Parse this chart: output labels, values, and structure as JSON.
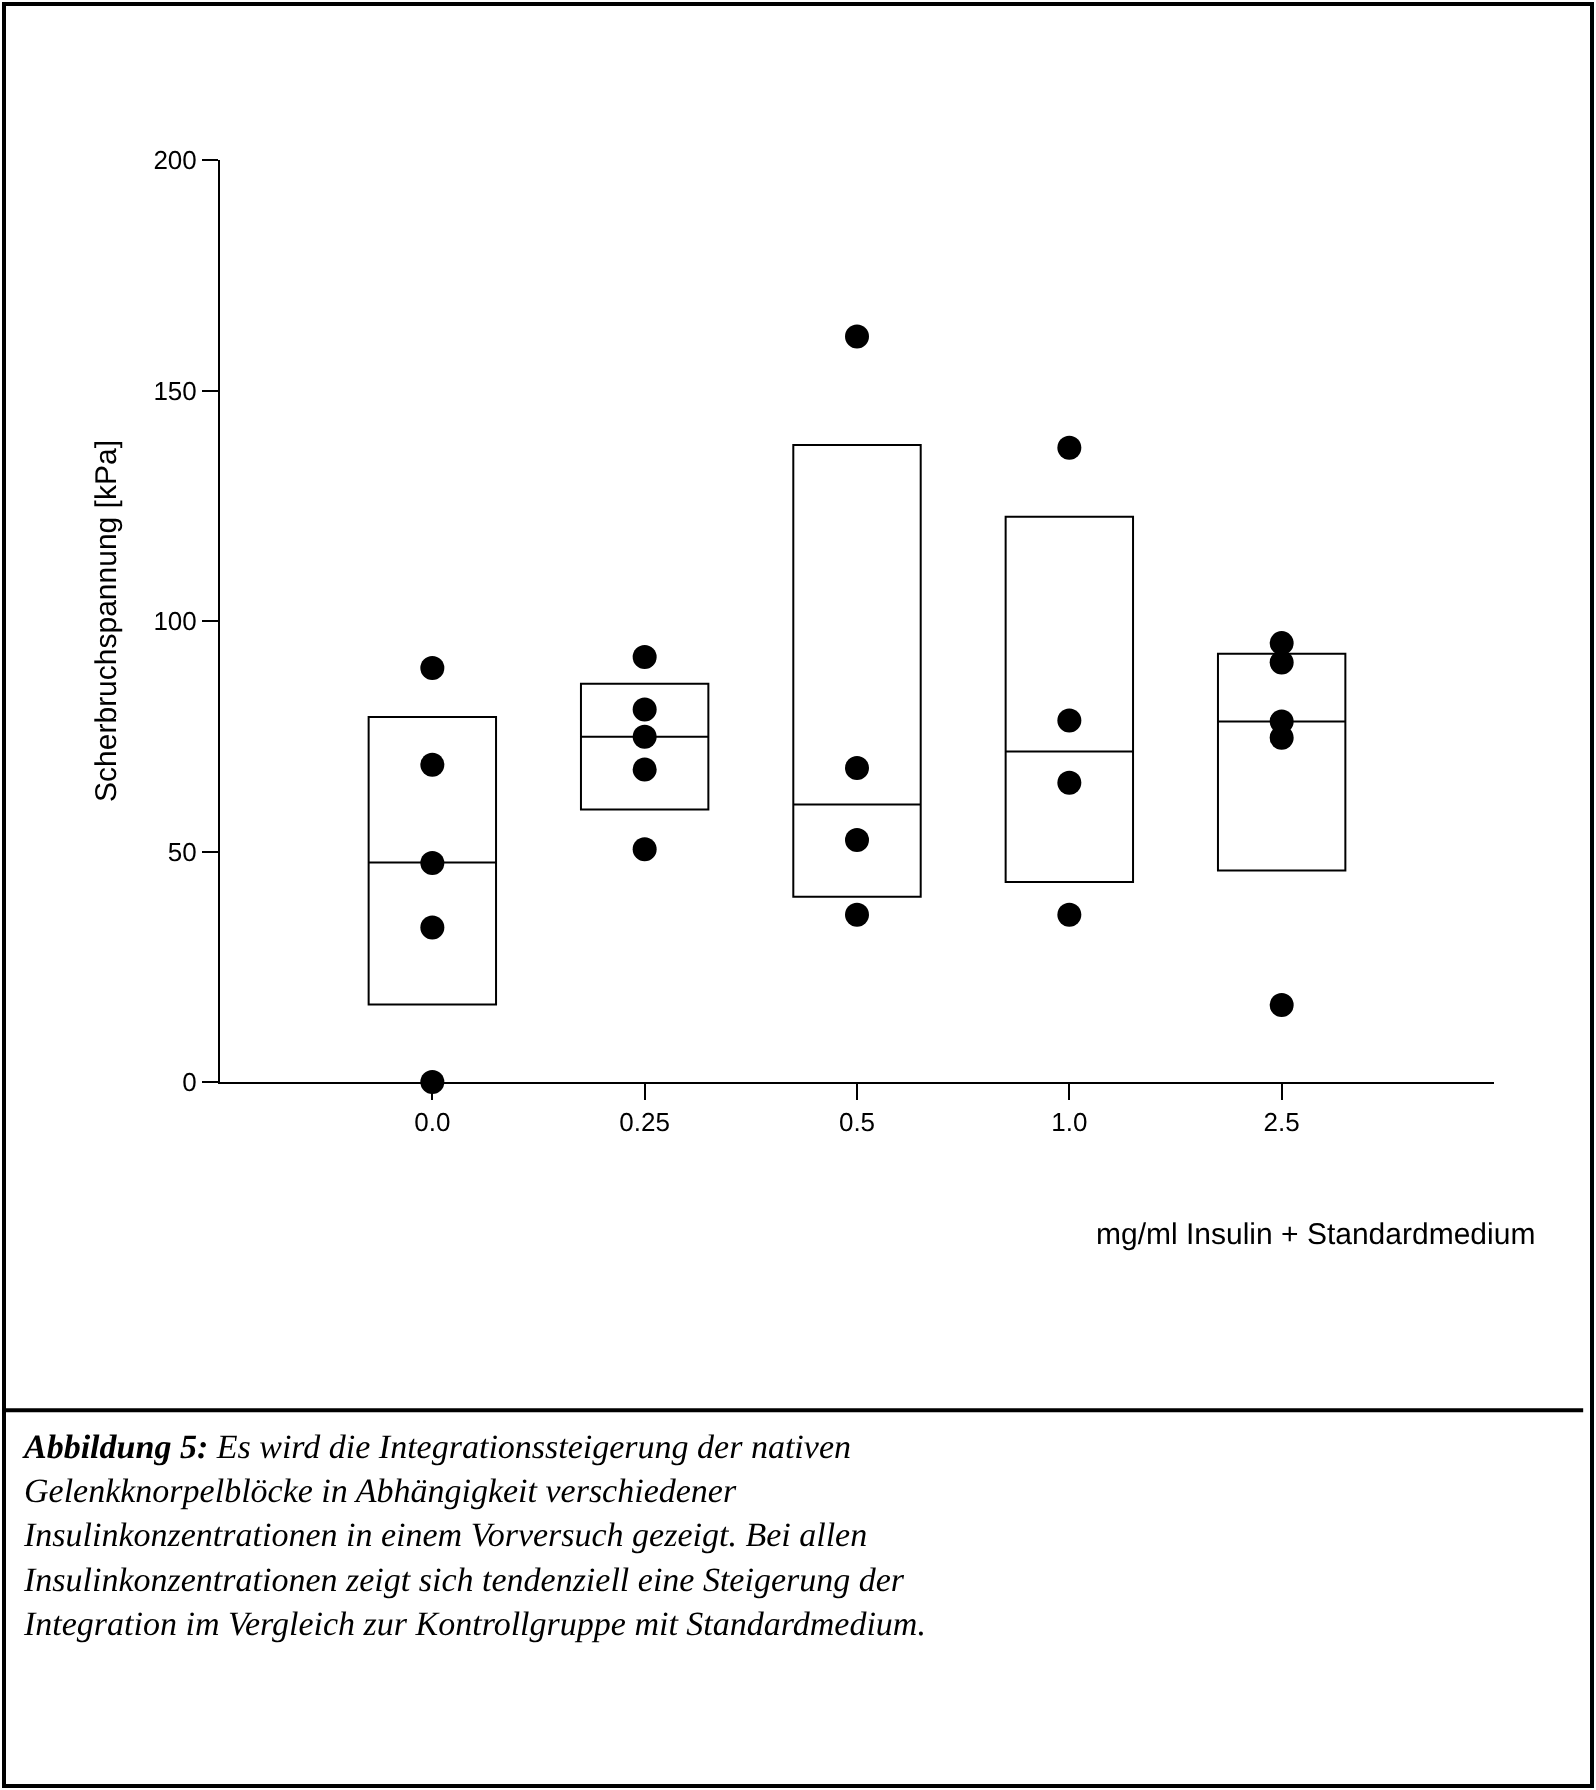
{
  "chart_data": {
    "type": "box",
    "ylabel": "Scherbruchspannung [kPa]",
    "xlabel": "mg/ml Insulin + Standardmedium",
    "categories": [
      "0.0",
      "0.25",
      "0.5",
      "1.0",
      "2.5"
    ],
    "ylim": [
      0,
      200
    ],
    "yticks": [
      0,
      50,
      100,
      150,
      200
    ],
    "grid": false,
    "boxes": [
      {
        "low": 16.8,
        "q1": 16.8,
        "median": 47.6,
        "q3": 79.2,
        "high": 79.2
      },
      {
        "low": 59.1,
        "q1": 59.1,
        "median": 74.9,
        "q3": 86.4,
        "high": 86.4
      },
      {
        "low": 40.2,
        "q1": 40.2,
        "median": 60.2,
        "q3": 138.2,
        "high": 138.2
      },
      {
        "low": 43.4,
        "q1": 43.4,
        "median": 71.7,
        "q3": 122.6,
        "high": 122.6
      },
      {
        "low": 45.9,
        "q1": 45.9,
        "median": 78.2,
        "q3": 92.9,
        "high": 92.9
      }
    ],
    "series": [
      {
        "type": "scatter",
        "color": "#000000",
        "marker": "circle",
        "x": [
          "0.0",
          "0.0",
          "0.0",
          "0.0",
          "0.0",
          "0.25",
          "0.25",
          "0.25",
          "0.25",
          "0.25",
          "0.5",
          "0.5",
          "0.5",
          "0.5",
          "1.0",
          "1.0",
          "1.0",
          "1.0",
          "2.5",
          "2.5",
          "2.5",
          "2.5",
          "2.5"
        ],
        "values": [
          89.8,
          68.8,
          47.5,
          33.5,
          0,
          92.2,
          80.8,
          74.9,
          67.8,
          50.5,
          161.7,
          68.1,
          52.5,
          36.3,
          137.6,
          78.4,
          64.9,
          36.3,
          95.2,
          91.0,
          78.2,
          74.7,
          16.7
        ]
      }
    ],
    "annotations": [
      "Abbildung 5: Es wird die Integrationssteigerung der nativen Gelenkknorpelblöcke in Abhängigkeit verschiedener Insulinkonzentrationen in einem Vorversuch gezeigt. Bei allen Insulinkonzentrationen zeigt sich tendenziell eine Steigerung der Integration im Vergleich zur Kontrollgruppe mit Standardmedium."
    ]
  }
}
